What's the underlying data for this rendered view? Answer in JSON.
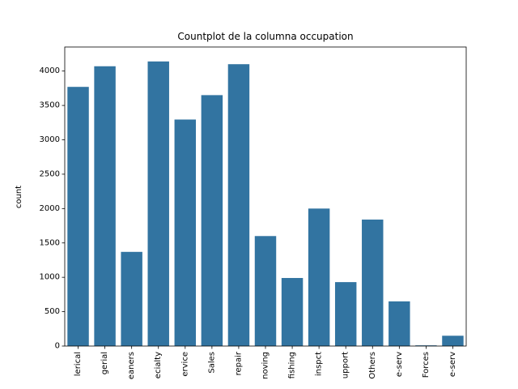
{
  "chart_data": {
    "type": "bar",
    "title": "Countplot de la columna occupation",
    "xlabel": "",
    "ylabel": "count",
    "categories": [
      "lerical",
      "gerial",
      "eaners",
      "ecialty",
      "ervice",
      "Sales",
      "repair",
      "noving",
      "fishing",
      "inspct",
      "upport",
      "Others",
      "e-serv",
      "Forces",
      "e-serv"
    ],
    "values": [
      3770,
      4070,
      1370,
      4140,
      3295,
      3650,
      4100,
      1600,
      990,
      2000,
      930,
      1840,
      650,
      10,
      150
    ],
    "ylim": [
      0,
      4350
    ],
    "yticks": [
      0,
      500,
      1000,
      1500,
      2000,
      2500,
      3000,
      3500,
      4000
    ],
    "bar_color": "#3274a1",
    "grid": false
  }
}
